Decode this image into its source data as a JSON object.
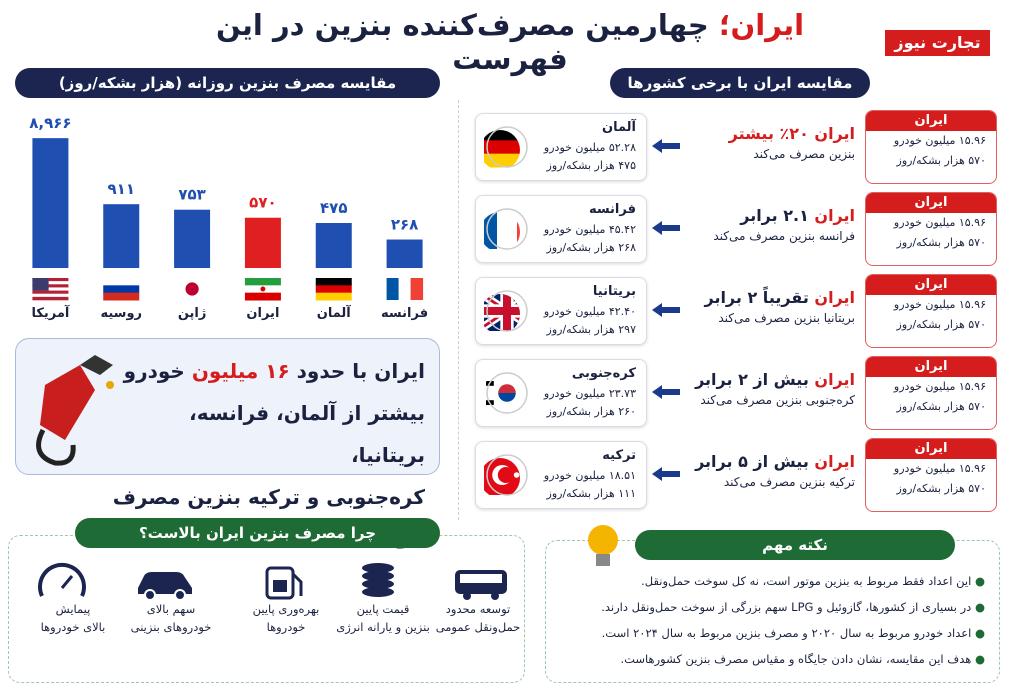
{
  "header": {
    "title_highlight": "ایران؛",
    "title": "چهارمین مصرف‌کننده بنزین در این فهرست",
    "logo": "تجارت نیوز"
  },
  "chart_data": {
    "type": "bar",
    "title": "مقایسه مصرف بنزین روزانه (هزار بشکه/روز)",
    "categories": [
      "آمریکا",
      "روسیه",
      "ژاپن",
      "ایران",
      "آلمان",
      "فرانسه"
    ],
    "values": [
      8966,
      911,
      753,
      570,
      475,
      268
    ],
    "value_labels": [
      "۸,۹۶۶",
      "۹۱۱",
      "۷۵۳",
      "۵۷۰",
      "۴۷۵",
      "۲۶۸"
    ],
    "colors": [
      "#1f4fb0",
      "#1f4fb0",
      "#1f4fb0",
      "#e02020",
      "#1f4fb0",
      "#1f4fb0"
    ],
    "ylim": [
      100,
      10000
    ],
    "log_scale": true
  },
  "callout": {
    "line1_start": "ایران با حدود",
    "line1_highlight": "۱۶ میلیون",
    "line1_end": "خودرو",
    "line2": "بیشتر از آلمان، فرانسه، بریتانیا،",
    "line3": "کره‌جنوبی و ترکیه بنزین مصرف می‌کند."
  },
  "reasons": {
    "title": "چرا مصرف بنزین ایران بالاست؟",
    "items": [
      {
        "line1": "توسعه محدود",
        "line2": "حمل‌ونقل عمومی"
      },
      {
        "line1": "قیمت پایین",
        "line2": "بنزین و یارانه انرژی"
      },
      {
        "line1": "بهره‌وری پایین",
        "line2": "خودروها"
      },
      {
        "line1": "سهم بالای",
        "line2": "خودروهای بنزینی"
      },
      {
        "line1": "پیمایش",
        "line2": "بالای خودروها"
      }
    ]
  },
  "comparison": {
    "title": "مقایسه ایران با برخی کشورها",
    "iran_card": {
      "name": "ایران",
      "cars": "۱۵.۹۶ میلیون خودرو",
      "barrels": "۵۷۰ هزار بشکه/روز"
    },
    "rows": [
      {
        "lead": "ایران",
        "text": "۲۰٪ بیشتر",
        "line2": "بنزین مصرف می‌کند",
        "country": "آلمان",
        "cars": "۵۲.۲۸ میلیون خودرو",
        "barrels": "۴۷۵ هزار بشکه/روز"
      },
      {
        "lead": "ایران",
        "text": "۲.۱ برابر",
        "line2": "فرانسه بنزین مصرف می‌کند",
        "country": "فرانسه",
        "cars": "۴۵.۴۲ میلیون خودرو",
        "barrels": "۲۶۸ هزار بشکه/روز"
      },
      {
        "lead": "ایران",
        "text": "تقریباً ۲ برابر",
        "line2": "بریتانیا بنزین مصرف می‌کند",
        "country": "بریتانیا",
        "cars": "۴۲.۴۰ میلیون خودرو",
        "barrels": "۲۹۷ هزار بشکه/روز"
      },
      {
        "lead": "ایران",
        "text": "بیش از ۲ برابر",
        "line2": "کره‌جنوبی بنزین مصرف می‌کند",
        "country": "کره‌جنوبی",
        "cars": "۲۳.۷۳ میلیون خودرو",
        "barrels": "۲۶۰ هزار بشکه/روز"
      },
      {
        "lead": "ایران",
        "text": "بیش از ۵ برابر",
        "line2": "ترکیه بنزین مصرف می‌کند",
        "country": "ترکیه",
        "cars": "۱۸.۵۱ میلیون خودرو",
        "barrels": "۱۱۱ هزار بشکه/روز"
      }
    ]
  },
  "note": {
    "title": "نکته مهم",
    "items": [
      "این اعداد فقط مربوط به بنزین موتور است، نه کل سوخت حمل‌ونقل.",
      "در بسیاری از کشورها، گازوئیل و LPG سهم بزرگی از سوخت حمل‌ونقل دارند.",
      "اعداد خودرو مربوط به سال ۲۰۲۰ و مصرف بنزین مربوط به سال ۲۰۲۴ است.",
      "هدف این مقایسه، نشان دادن جایگاه و مقیاس مصرف بنزین کشورهاست."
    ]
  }
}
